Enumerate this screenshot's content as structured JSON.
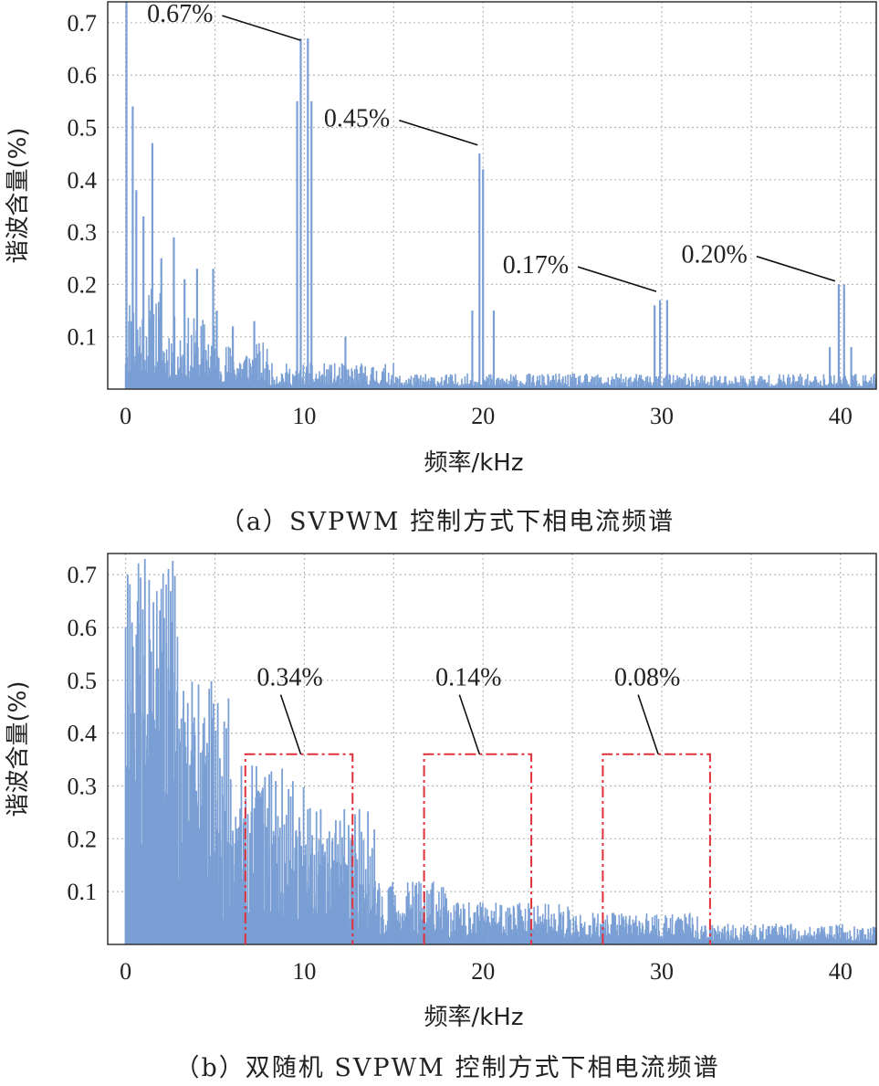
{
  "chart_data": [
    {
      "type": "bar",
      "caption": "（a）SVPWM 控制方式下相电流频谱",
      "xlabel": "频率/kHz",
      "ylabel": "谐波含量(%)",
      "xlim": [
        -1,
        42
      ],
      "ylim": [
        0,
        0.74
      ],
      "xticks": [
        0,
        10,
        20,
        30,
        40
      ],
      "yticks": [
        0.1,
        0.2,
        0.3,
        0.4,
        0.5,
        0.6,
        0.7
      ],
      "grid": true,
      "bar_color": "#7a9fd4",
      "peaks": [
        {
          "x": 0.05,
          "value": 0.74
        },
        {
          "x": 0.4,
          "value": 0.54
        },
        {
          "x": 0.6,
          "value": 0.38
        },
        {
          "x": 1.0,
          "value": 0.33
        },
        {
          "x": 1.5,
          "value": 0.47
        },
        {
          "x": 2.0,
          "value": 0.25
        },
        {
          "x": 2.7,
          "value": 0.29
        },
        {
          "x": 3.3,
          "value": 0.21
        },
        {
          "x": 4.0,
          "value": 0.23
        },
        {
          "x": 4.9,
          "value": 0.23
        },
        {
          "x": 5.1,
          "value": 0.15
        },
        {
          "x": 6.0,
          "value": 0.12
        },
        {
          "x": 7.2,
          "value": 0.13
        },
        {
          "x": 9.6,
          "value": 0.55
        },
        {
          "x": 9.8,
          "value": 0.67
        },
        {
          "x": 10.2,
          "value": 0.67
        },
        {
          "x": 10.4,
          "value": 0.55
        },
        {
          "x": 12.3,
          "value": 0.1
        },
        {
          "x": 19.4,
          "value": 0.15
        },
        {
          "x": 19.8,
          "value": 0.45
        },
        {
          "x": 20.0,
          "value": 0.42
        },
        {
          "x": 20.6,
          "value": 0.15
        },
        {
          "x": 29.6,
          "value": 0.16
        },
        {
          "x": 29.9,
          "value": 0.17
        },
        {
          "x": 30.3,
          "value": 0.17
        },
        {
          "x": 39.4,
          "value": 0.08
        },
        {
          "x": 39.9,
          "value": 0.2
        },
        {
          "x": 40.2,
          "value": 0.2
        },
        {
          "x": 40.6,
          "value": 0.08
        }
      ],
      "annotations": [
        {
          "text": "0.67%",
          "target_x": 10.0,
          "target_y": 0.67
        },
        {
          "text": "0.45%",
          "target_x": 19.9,
          "target_y": 0.47
        },
        {
          "text": "0.17%",
          "target_x": 29.9,
          "target_y": 0.19
        },
        {
          "text": "0.20%",
          "target_x": 39.9,
          "target_y": 0.21
        }
      ]
    },
    {
      "type": "bar",
      "caption": "（b）双随机 SVPWM 控制方式下相电流频谱",
      "xlabel": "频率/kHz",
      "ylabel": "谐波含量(%)",
      "xlim": [
        -1,
        42
      ],
      "ylim": [
        0,
        0.74
      ],
      "xticks": [
        0,
        10,
        20,
        30,
        40
      ],
      "yticks": [
        0.1,
        0.2,
        0.3,
        0.4,
        0.5,
        0.6,
        0.7
      ],
      "grid": true,
      "bar_color": "#7a9fd4",
      "box_color": "#e0303a",
      "boxes": [
        {
          "x0": 6.7,
          "x1": 12.7,
          "y_top": 0.36
        },
        {
          "x0": 16.7,
          "x1": 22.7,
          "y_top": 0.36
        },
        {
          "x0": 26.7,
          "x1": 32.7,
          "y_top": 0.36
        }
      ],
      "annotations": [
        {
          "text": "0.34%",
          "target_x": 9.7,
          "target_y": 0.36
        },
        {
          "text": "0.14%",
          "target_x": 19.7,
          "target_y": 0.36
        },
        {
          "text": "0.08%",
          "target_x": 29.7,
          "target_y": 0.36
        }
      ]
    }
  ]
}
